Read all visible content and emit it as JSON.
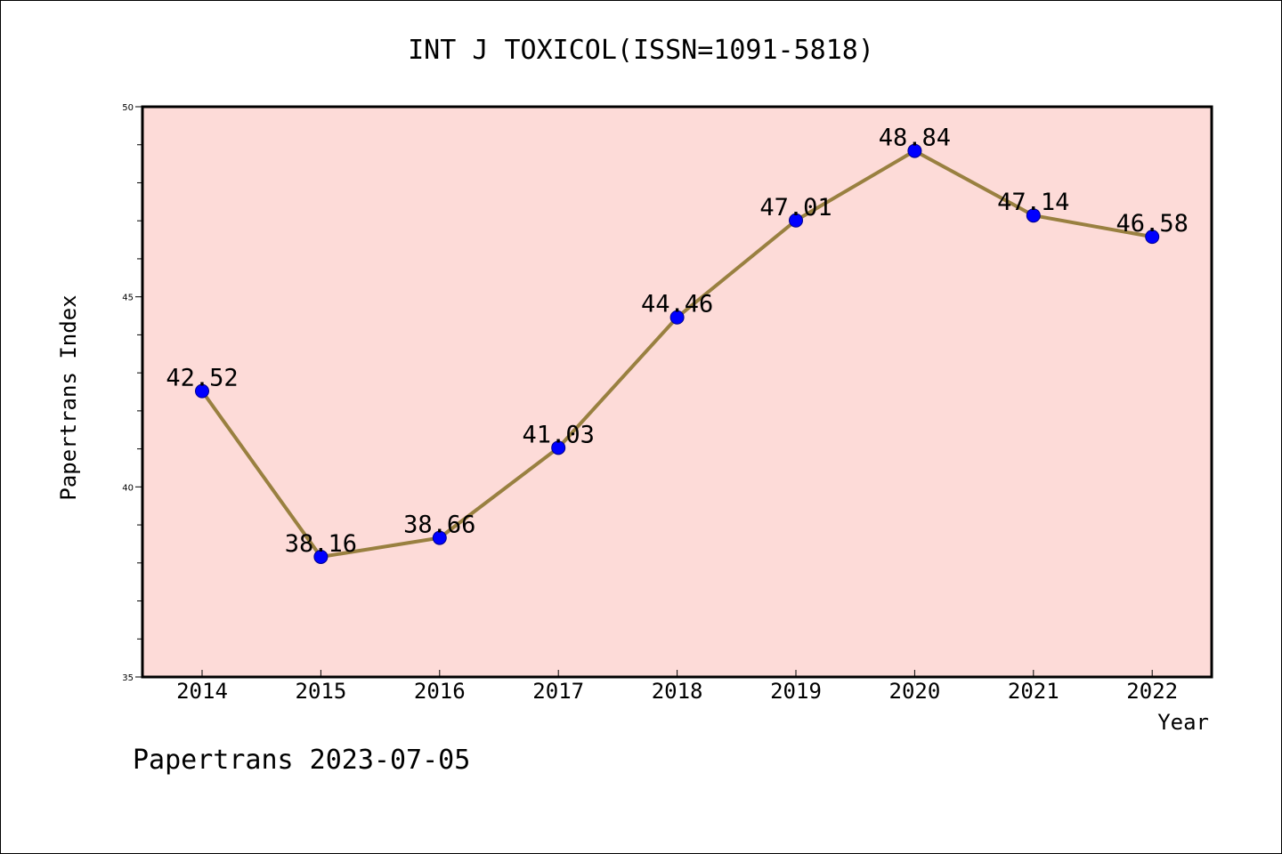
{
  "colors": {
    "plot_background": "#fddbd8",
    "line": "#998040",
    "marker_fill": "#0000ff",
    "marker_stroke": "#00008b",
    "axis": "#000000"
  },
  "chart_data": {
    "type": "line",
    "title": "INT J TOXICOL(ISSN=1091-5818)",
    "xlabel": "Year",
    "ylabel": "Papertrans Index",
    "categories": [
      "2014",
      "2015",
      "2016",
      "2017",
      "2018",
      "2019",
      "2020",
      "2021",
      "2022"
    ],
    "series": [
      {
        "values": [
          42.52,
          38.16,
          38.66,
          41.03,
          44.46,
          47.01,
          48.84,
          47.14,
          46.58
        ],
        "labels": [
          "42.52",
          "38.16",
          "38.66",
          "41.03",
          "44.46",
          "47.01",
          "48.84",
          "47.14",
          "46.58"
        ]
      }
    ],
    "ylim": [
      35,
      50
    ],
    "yticks": [
      35,
      40,
      45,
      50
    ],
    "ytick_labels": [
      "35",
      "40",
      "45",
      "50"
    ],
    "y_minor_step": 1,
    "grid": false,
    "legend": "none"
  },
  "footer": {
    "text": "Papertrans 2023-07-05"
  }
}
